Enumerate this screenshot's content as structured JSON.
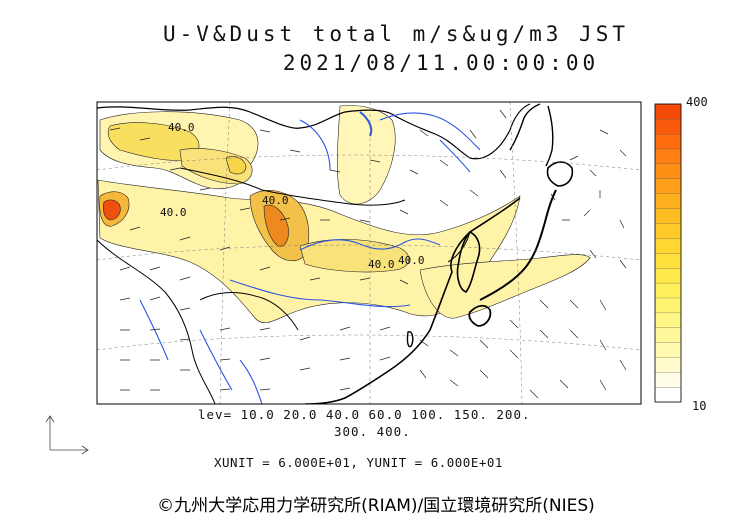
{
  "title": {
    "line1": "U-V&Dust total m/s&ug/m3 JST",
    "line2": "2021/08/11.00:00:00"
  },
  "contour_labels": [
    "40.0",
    "40.0",
    "40.0",
    "40.0",
    "40.0"
  ],
  "levels": {
    "line1": "lev= 10.0 20.0 40.0 60.0 100. 150. 200.",
    "line2": "300. 400."
  },
  "units_text": "XUNIT = 6.000E+01, YUNIT = 6.000E+01",
  "colorbar": {
    "max_label": "400",
    "min_label": "10",
    "colors": [
      "#ffffff",
      "#fffde8",
      "#fffbcc",
      "#fff9b0",
      "#fff79a",
      "#fff685",
      "#fff470",
      "#ffef5a",
      "#ffe84a",
      "#ffe03d",
      "#ffd632",
      "#ffca2a",
      "#ffbd24",
      "#ffb01f",
      "#ffa01a",
      "#ff9016",
      "#ff7f12",
      "#fd6c0e",
      "#f95a0b",
      "#f44a08"
    ]
  },
  "copyright": "©九州大学応用力学研究所(RIAM)/国立環境研究所(NIES)",
  "colors": {
    "coast": "#000000",
    "rivers": "#2a55e6",
    "dust_low": "#fff3a8",
    "dust_mid": "#f6d44a",
    "dust_high": "#f08a1a",
    "dust_peak": "#ec4a10"
  }
}
